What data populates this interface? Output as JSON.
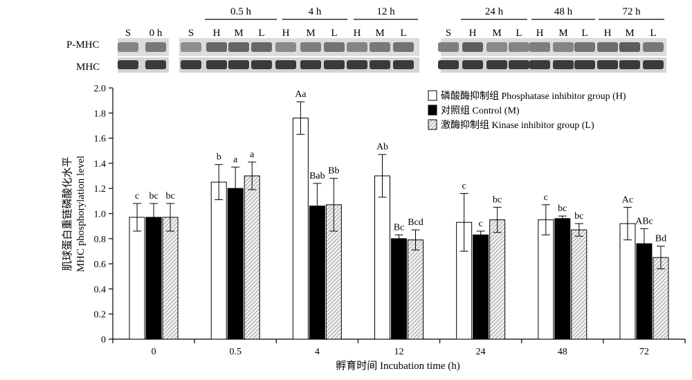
{
  "blot": {
    "rows": [
      {
        "label": "P-MHC"
      },
      {
        "label": "MHC"
      }
    ],
    "groups": [
      {
        "time": "",
        "lanes": [
          "S",
          "0 h"
        ]
      },
      {
        "time": "0.5 h",
        "lanes": [
          "S",
          "H",
          "M",
          "L"
        ]
      },
      {
        "time": "4 h",
        "lanes": [
          "H",
          "M",
          "L"
        ]
      },
      {
        "time": "12 h",
        "lanes": [
          "H",
          "M",
          "L"
        ]
      },
      {
        "time": "24 h",
        "lanes": [
          "S",
          "H",
          "M",
          "L"
        ]
      },
      {
        "time": "48 h",
        "lanes": [
          "H",
          "M",
          "L"
        ]
      },
      {
        "time": "72 h",
        "lanes": [
          "H",
          "M",
          "L"
        ]
      }
    ]
  },
  "chart_data": {
    "type": "bar",
    "xlabel": "孵育时间 Incubation time (h)",
    "ylabel_cn": "肌球蛋白重链磷酸化水平",
    "ylabel_en": "MHC phosphorylation level",
    "ylim": [
      0,
      2.0
    ],
    "yticks": [
      "0",
      "0.2",
      "0.4",
      "0.6",
      "0.8",
      "1.0",
      "1.2",
      "1.4",
      "1.6",
      "1.8",
      "2.0"
    ],
    "categories": [
      "0",
      "0.5",
      "4",
      "12",
      "24",
      "48",
      "72"
    ],
    "legend_position": "top-right",
    "series": [
      {
        "name": "磷酸酶抑制组 Phosphatase inhibitor group (H)",
        "fill": "white",
        "values": [
          0.97,
          1.25,
          1.76,
          1.3,
          0.93,
          0.95,
          0.92
        ],
        "errors": [
          0.11,
          0.14,
          0.13,
          0.17,
          0.23,
          0.12,
          0.13
        ],
        "labels": [
          "c",
          "b",
          "Aa",
          "Ab",
          "c",
          "c",
          "Ac"
        ]
      },
      {
        "name": "对照组 Control (M)",
        "fill": "black",
        "values": [
          0.97,
          1.2,
          1.06,
          0.8,
          0.83,
          0.96,
          0.76
        ],
        "errors": [
          0.11,
          0.17,
          0.18,
          0.03,
          0.03,
          0.02,
          0.12
        ],
        "labels": [
          "bc",
          "a",
          "Bab",
          "Bc",
          "c",
          "bc",
          "ABc"
        ]
      },
      {
        "name": "激酶抑制组 Kinase inhibitor group (L)",
        "fill": "hatched",
        "values": [
          0.97,
          1.3,
          1.07,
          0.79,
          0.95,
          0.87,
          0.65
        ],
        "errors": [
          0.11,
          0.11,
          0.21,
          0.08,
          0.1,
          0.05,
          0.09
        ],
        "labels": [
          "bc",
          "a",
          "Bb",
          "Bcd",
          "bc",
          "bc",
          "Bd"
        ]
      }
    ]
  }
}
